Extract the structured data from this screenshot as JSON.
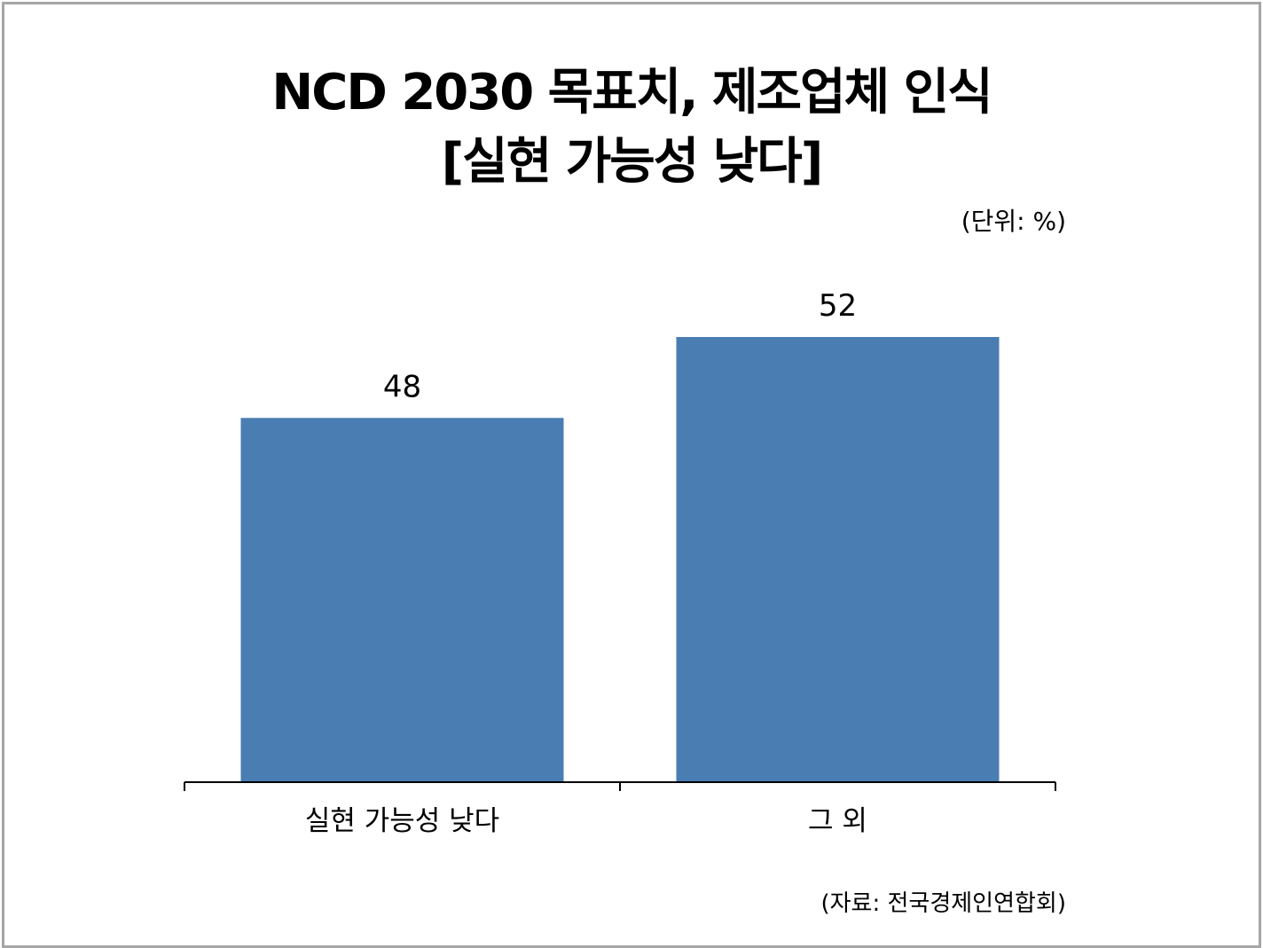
{
  "chart_data": {
    "type": "bar",
    "title": "NCD 2030 목표치, 제조업체 인식",
    "subtitle": "[실현 가능성 낮다]",
    "unit": "(단위: %)",
    "source": "(자료:  전국경제인연합회)",
    "categories": [
      "실현 가능성 낮다",
      "그 외"
    ],
    "values": [
      48,
      52
    ],
    "ylim": [
      30,
      55
    ],
    "grid": false,
    "legend": "none",
    "bar_color": "#4a7db2"
  }
}
